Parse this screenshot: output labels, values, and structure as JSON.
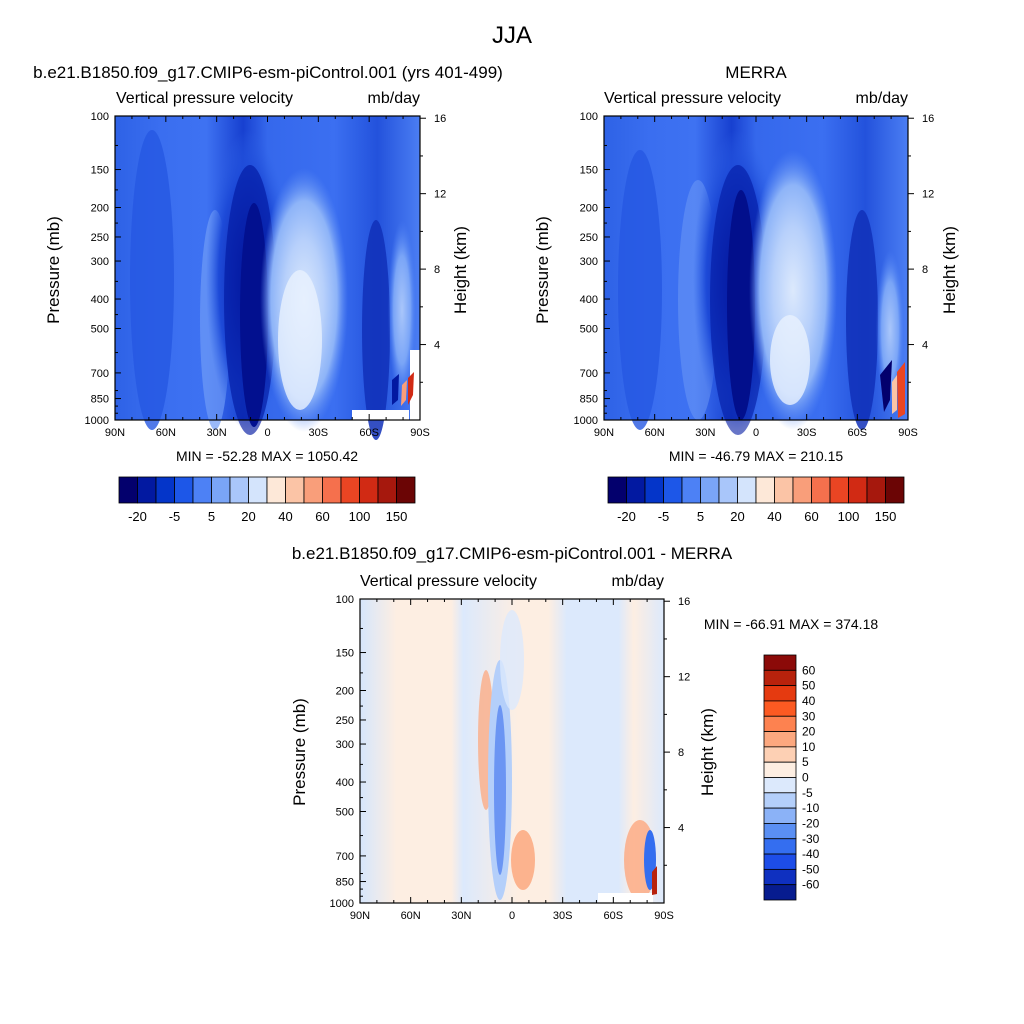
{
  "page": {
    "title": "JJA"
  },
  "chart_data": [
    {
      "type": "heatmap",
      "title": "b.e21.B1850.f09_g17.CMIP6-esm-piControl.001 (yrs 401-499)",
      "subtitle_left": "Vertical pressure velocity",
      "subtitle_right": "mb/day",
      "xlabel": "",
      "ylabel": "Pressure (mb)",
      "y2label": "Height (km)",
      "x_ticks": [
        "90N",
        "60N",
        "30N",
        "0",
        "30S",
        "60S",
        "90S"
      ],
      "y_ticks": [
        "100",
        "150",
        "200",
        "250",
        "300",
        "400",
        "500",
        "700",
        "850",
        "1000"
      ],
      "y2_ticks": [
        "16",
        "12",
        "8",
        "4"
      ],
      "ylim": [
        1000,
        100
      ],
      "stats": "MIN = -52.28  MAX = 1050.42",
      "colorbar_labels": [
        "-20",
        "-5",
        "5",
        "20",
        "40",
        "60",
        "100",
        "150"
      ],
      "colorbar_colors": [
        "#03006d",
        "#0219a1",
        "#0435c9",
        "#1d57e8",
        "#4d81f5",
        "#7aa5f7",
        "#a9c6fa",
        "#d4e4fc",
        "#fde8d8",
        "#fbc4a6",
        "#f99e7a",
        "#f5704d",
        "#ea4523",
        "#d12a14",
        "#a6180d",
        "#6b0505"
      ]
    },
    {
      "type": "heatmap",
      "title": "MERRA",
      "subtitle_left": "Vertical pressure velocity",
      "subtitle_right": "mb/day",
      "ylabel": "Pressure (mb)",
      "y2label": "Height (km)",
      "x_ticks": [
        "90N",
        "60N",
        "30N",
        "0",
        "30S",
        "60S",
        "90S"
      ],
      "y_ticks": [
        "100",
        "150",
        "200",
        "250",
        "300",
        "400",
        "500",
        "700",
        "850",
        "1000"
      ],
      "y2_ticks": [
        "16",
        "12",
        "8",
        "4"
      ],
      "ylim": [
        1000,
        100
      ],
      "stats": "MIN = -46.79  MAX = 210.15",
      "colorbar_labels": [
        "-20",
        "-5",
        "5",
        "20",
        "40",
        "60",
        "100",
        "150"
      ]
    },
    {
      "type": "heatmap",
      "title": "b.e21.B1850.f09_g17.CMIP6-esm-piControl.001 - MERRA",
      "subtitle_left": "Vertical pressure velocity",
      "subtitle_right": "mb/day",
      "ylabel": "Pressure (mb)",
      "y2label": "Height (km)",
      "x_ticks": [
        "90N",
        "60N",
        "30N",
        "0",
        "30S",
        "60S",
        "90S"
      ],
      "y_ticks": [
        "100",
        "150",
        "200",
        "250",
        "300",
        "400",
        "500",
        "700",
        "850",
        "1000"
      ],
      "y2_ticks": [
        "16",
        "12",
        "8",
        "4"
      ],
      "ylim": [
        1000,
        100
      ],
      "stats": "MIN = -66.91  MAX = 374.18",
      "colorbar_labels": [
        "60",
        "50",
        "40",
        "30",
        "20",
        "10",
        "5",
        "0",
        "-5",
        "-10",
        "-20",
        "-30",
        "-40",
        "-50",
        "-60"
      ],
      "colorbar_colors": [
        "#8b0a08",
        "#b8220c",
        "#e53a10",
        "#fc5a22",
        "#fd8250",
        "#fca87f",
        "#fdd0b4",
        "#fdeee2",
        "#dce9fc",
        "#b4cffa",
        "#8bb2f7",
        "#5a8ff3",
        "#346ef0",
        "#1d4de8",
        "#0f30c0",
        "#071c8f"
      ]
    }
  ]
}
